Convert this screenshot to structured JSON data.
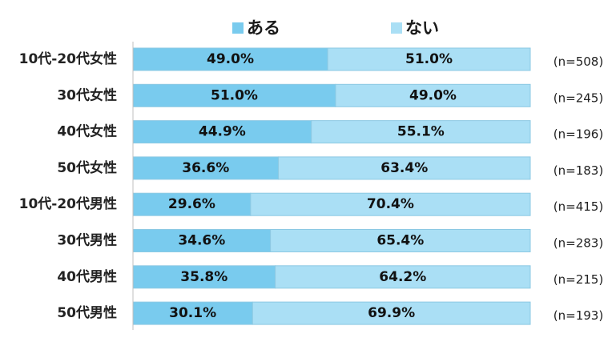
{
  "chart_data": {
    "type": "bar",
    "orientation": "horizontal",
    "stacked": true,
    "percent_stacked": true,
    "legend": {
      "position": "top",
      "items": [
        "ある",
        "ない"
      ]
    },
    "categories": [
      "10代-20代女性",
      "30代女性",
      "40代女性",
      "50代女性",
      "10代-20代男性",
      "30代男性",
      "40代男性",
      "50代男性"
    ],
    "series": [
      {
        "name": "ある",
        "color": "#79cbee",
        "values": [
          49.0,
          51.0,
          44.9,
          36.6,
          29.6,
          34.6,
          35.8,
          30.1
        ]
      },
      {
        "name": "ない",
        "color": "#aadff5",
        "values": [
          51.0,
          49.0,
          55.1,
          63.4,
          70.4,
          65.4,
          64.2,
          69.9
        ]
      }
    ],
    "value_labels": [
      [
        "49.0%",
        "51.0%"
      ],
      [
        "51.0%",
        "49.0%"
      ],
      [
        "44.9%",
        "55.1%"
      ],
      [
        "36.6%",
        "63.4%"
      ],
      [
        "29.6%",
        "70.4%"
      ],
      [
        "34.6%",
        "65.4%"
      ],
      [
        "35.8%",
        "64.2%"
      ],
      [
        "30.1%",
        "69.9%"
      ]
    ],
    "sample_sizes": [
      "(n=508)",
      "(n=245)",
      "(n=196)",
      "(n=183)",
      "(n=415)",
      "(n=283)",
      "(n=215)",
      "(n=193)"
    ],
    "xlim": [
      0,
      100
    ],
    "title": "",
    "xlabel": "",
    "ylabel": ""
  },
  "colors": {
    "series1": "#79cbee",
    "series2": "#aadff5",
    "bar_border": "#8cc9e3",
    "axis": "#bfbfbf"
  }
}
